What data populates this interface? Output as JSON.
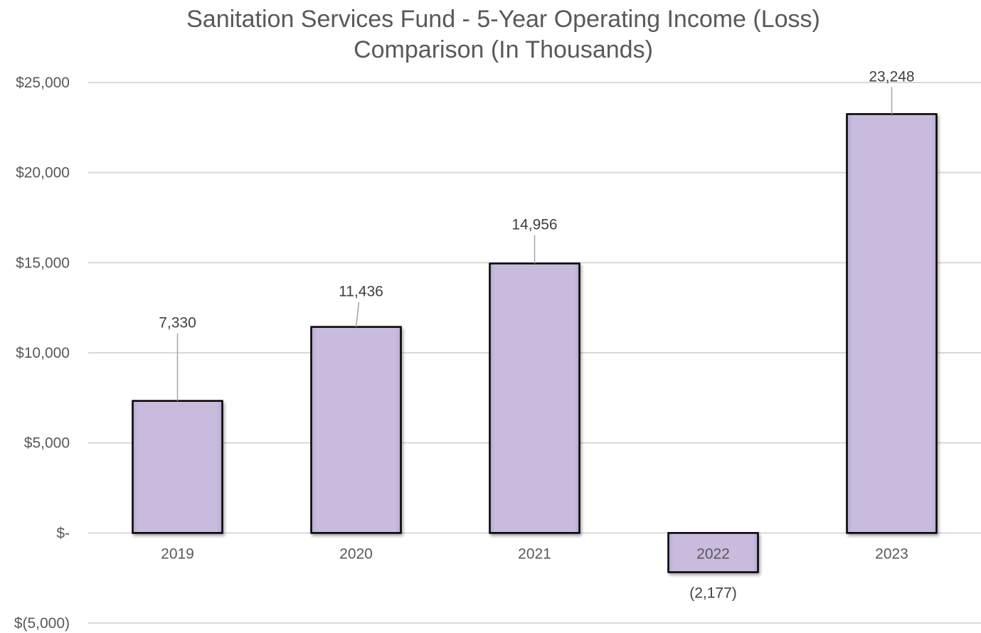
{
  "chart_data": {
    "type": "bar",
    "title": [
      "Sanitation Services Fund - 5-Year Operating Income (Loss)",
      "Comparison (In Thousands)"
    ],
    "xlabel": "",
    "ylabel": "",
    "categories": [
      "2019",
      "2020",
      "2021",
      "2022",
      "2023"
    ],
    "values": [
      7330,
      11436,
      14956,
      -2177,
      23248
    ],
    "value_labels": [
      "7,330",
      "11,436",
      "14,956",
      "(2,177)",
      "23,248"
    ],
    "ylim": [
      -5000,
      25000
    ],
    "yticks": [
      {
        "value": 25000,
        "label": "$25,000"
      },
      {
        "value": 20000,
        "label": "$20,000"
      },
      {
        "value": 15000,
        "label": "$15,000"
      },
      {
        "value": 10000,
        "label": "$10,000"
      },
      {
        "value": 5000,
        "label": "$5,000"
      },
      {
        "value": 0,
        "label": "$-"
      },
      {
        "value": -5000,
        "label": "$(5,000)"
      }
    ],
    "grid": true,
    "legend": "none",
    "colors": {
      "bar_fill": "#c9bbdd",
      "bar_edge": "#000000",
      "grid": "#d9d9d9",
      "text": "#595959",
      "leader": "#a6a6a6"
    }
  }
}
